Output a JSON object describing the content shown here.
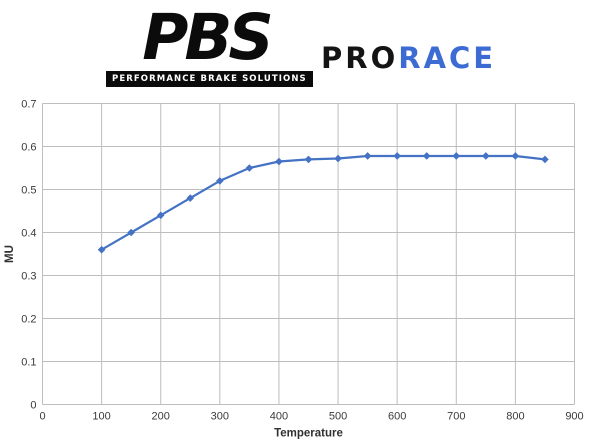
{
  "header": {
    "logo": {
      "brand": "PBS",
      "tagline": "PERFORMANCE BRAKE SOLUTIONS"
    },
    "product": {
      "pro": "PRO",
      "race": "RACE",
      "pro_color": "#141414",
      "race_color": "#3d6bd4"
    }
  },
  "chart_data": {
    "type": "line",
    "title": "",
    "xlabel": "Temperature",
    "ylabel": "MU",
    "xlim": [
      0,
      900
    ],
    "ylim": [
      0,
      0.7
    ],
    "x_ticks": [
      0,
      100,
      200,
      300,
      400,
      500,
      600,
      700,
      800,
      900
    ],
    "y_ticks": [
      0,
      0.1,
      0.2,
      0.3,
      0.4,
      0.5,
      0.6,
      0.7
    ],
    "grid": true,
    "grid_color": "#bdbdbd",
    "legend": "none",
    "marker": "diamond",
    "series": [
      {
        "name": "MU",
        "color": "#4472c4",
        "x": [
          100,
          150,
          200,
          250,
          300,
          350,
          400,
          450,
          500,
          550,
          600,
          650,
          700,
          750,
          800,
          850
        ],
        "y": [
          0.36,
          0.4,
          0.44,
          0.48,
          0.52,
          0.55,
          0.565,
          0.57,
          0.572,
          0.578,
          0.578,
          0.578,
          0.578,
          0.578,
          0.578,
          0.57
        ]
      }
    ]
  }
}
